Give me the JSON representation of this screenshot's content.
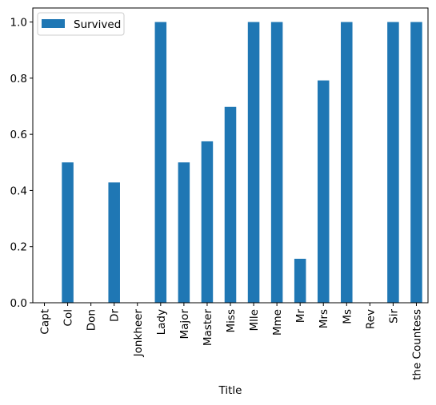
{
  "chart_data": {
    "type": "bar",
    "xlabel": "Title",
    "ylabel": "",
    "ylim": [
      0,
      1.05
    ],
    "yticks": [
      0.0,
      0.2,
      0.4,
      0.6,
      0.8,
      1.0
    ],
    "ytick_labels": [
      "0.0",
      "0.2",
      "0.4",
      "0.6",
      "0.8",
      "1.0"
    ],
    "categories": [
      "Capt",
      "Col",
      "Don",
      "Dr",
      "Jonkheer",
      "Lady",
      "Major",
      "Master",
      "Miss",
      "Mlle",
      "Mme",
      "Mr",
      "Mrs",
      "Ms",
      "Rev",
      "Sir",
      "the Countess"
    ],
    "series": [
      {
        "name": "Survived",
        "color": "#1f77b4",
        "values": [
          0.0,
          0.5,
          0.0,
          0.4286,
          0.0,
          1.0,
          0.5,
          0.575,
          0.6978,
          1.0,
          1.0,
          0.1567,
          0.792,
          1.0,
          0.0,
          1.0,
          1.0
        ]
      }
    ],
    "legend": {
      "position": "top-left"
    },
    "grid": false
  }
}
